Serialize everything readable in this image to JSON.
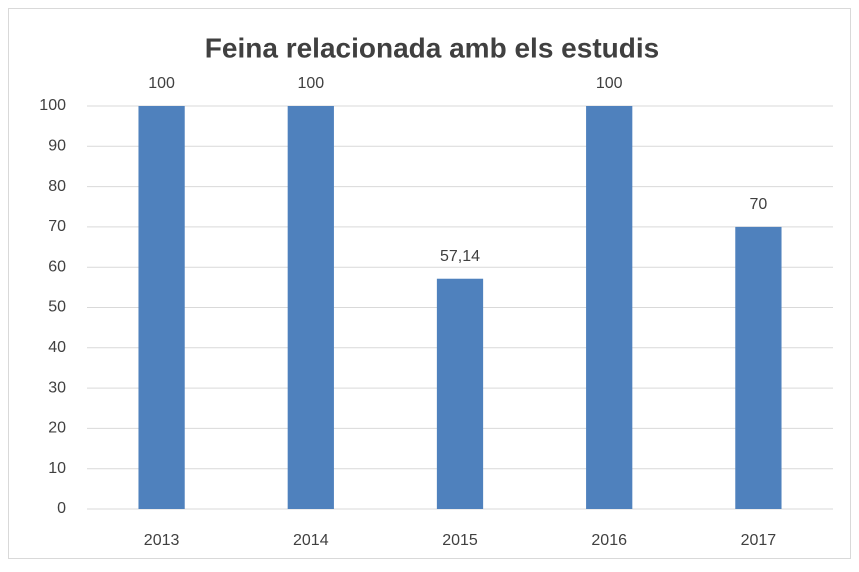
{
  "chart_data": {
    "type": "bar",
    "title": "Feina relacionada amb els estudis",
    "categories": [
      "2013",
      "2014",
      "2015",
      "2016",
      "2017"
    ],
    "values": [
      100,
      100,
      57.14,
      100,
      70
    ],
    "value_labels": [
      "100",
      "100",
      "57,14",
      "100",
      "70"
    ],
    "color": "#4f81bd",
    "ylim": [
      0,
      100
    ],
    "yticks": [
      0,
      10,
      20,
      30,
      40,
      50,
      60,
      70,
      80,
      90,
      100
    ],
    "grid": true
  }
}
